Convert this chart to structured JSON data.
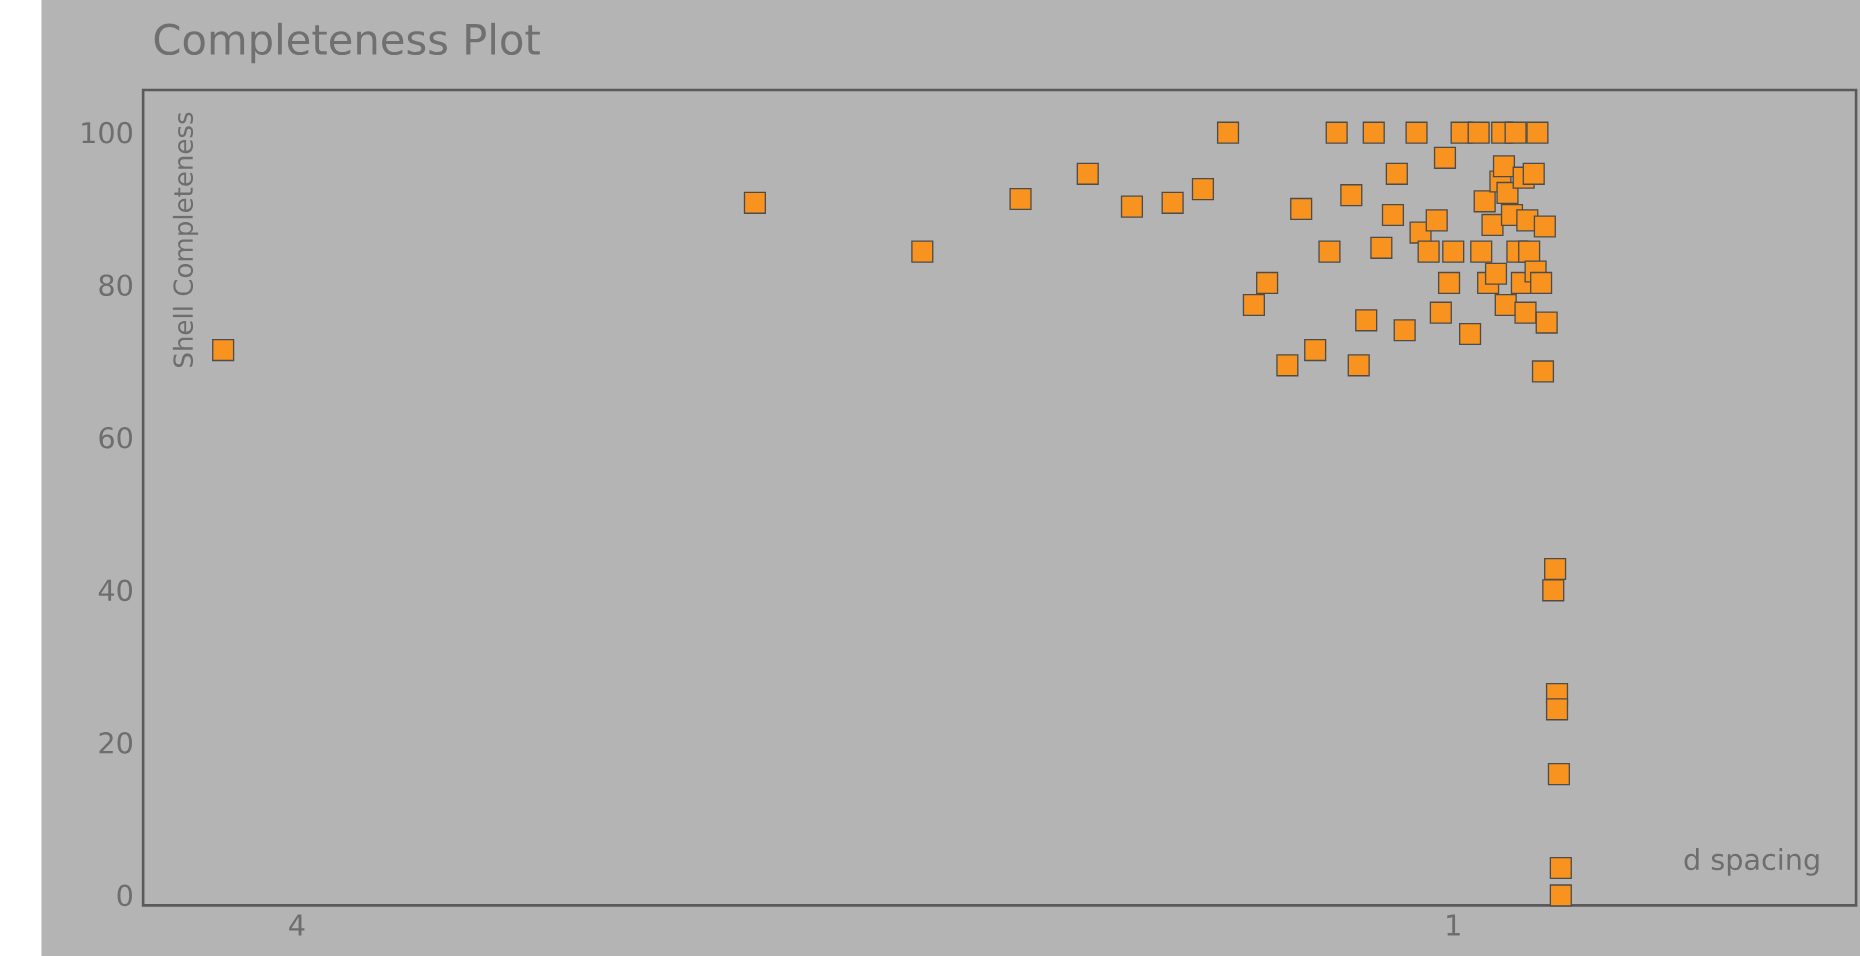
{
  "chart_data": {
    "type": "scatter",
    "title": "Completeness Plot",
    "xlabel": "d spacing",
    "ylabel": "Shell Completeness",
    "log": "x",
    "marker": "square",
    "xlim": [
      4.81,
      0.617
    ],
    "ylim": [
      -1.3,
      105.6
    ],
    "xticks": [
      4,
      1
    ],
    "yticks": [
      0,
      20,
      40,
      60,
      80,
      100
    ],
    "series": [
      {
        "color": "#f7931e",
        "x": [
          4.37,
          2.31,
          1.89,
          1.68,
          1.55,
          1.47,
          1.4,
          1.35,
          1.31,
          1.27,
          1.25,
          1.22,
          1.2,
          1.18,
          1.16,
          1.15,
          1.13,
          1.12,
          1.11,
          1.1,
          1.09,
          1.075,
          1.07,
          1.06,
          1.045,
          1.04,
          1.03,
          1.02,
          1.015,
          1.01,
          1.005,
          1.0,
          0.99,
          0.98,
          0.97,
          0.967,
          0.963,
          0.959,
          0.954,
          0.95,
          0.945,
          0.943,
          0.941,
          0.939,
          0.937,
          0.932,
          0.928,
          0.926,
          0.921,
          0.919,
          0.917,
          0.915,
          0.913,
          0.908,
          0.906,
          0.904,
          0.9,
          0.898,
          0.896,
          0.894,
          0.887,
          0.885,
          0.883,
          0.883,
          0.881,
          0.879,
          0.879
        ],
        "values": [
          71.5,
          90.8,
          84.4,
          91.3,
          94.6,
          90.3,
          90.8,
          92.6,
          100,
          77.4,
          80.3,
          69.5,
          90.0,
          71.5,
          84.4,
          100,
          91.8,
          69.5,
          75.4,
          100,
          84.9,
          89.2,
          94.6,
          74.1,
          100,
          86.9,
          84.4,
          88.5,
          76.4,
          96.7,
          80.3,
          84.4,
          100,
          73.6,
          100,
          84.4,
          91.0,
          80.3,
          87.9,
          81.5,
          93.6,
          100,
          95.6,
          77.4,
          92.1,
          89.2,
          100,
          84.4,
          80.3,
          94.1,
          76.4,
          88.5,
          84.4,
          94.6,
          81.8,
          100,
          80.3,
          68.7,
          87.7,
          75.1,
          40.0,
          42.8,
          26.4,
          24.4,
          15.9,
          3.6,
          0
        ]
      }
    ]
  }
}
